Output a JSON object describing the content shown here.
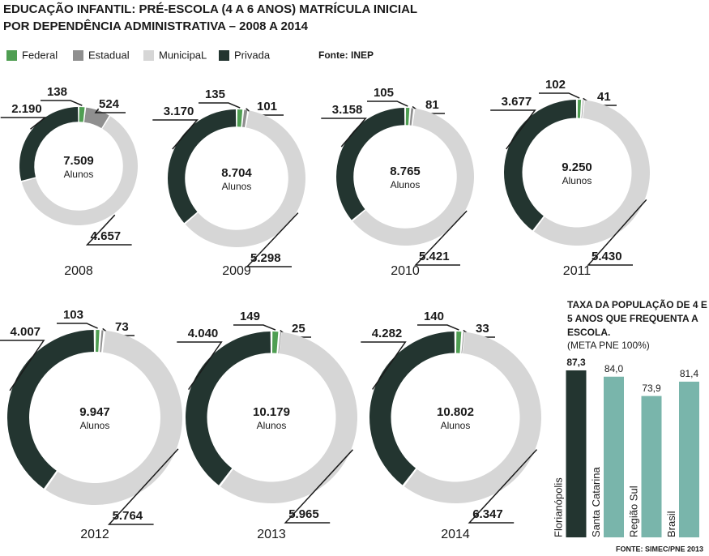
{
  "title": [
    "EDUCAÇÃO INFANTIL: PRÉ-ESCOLA (4 A 6 ANOS) MATRÍCULA INICIAL",
    "POR DEPENDÊNCIA ADMINISTRATIVA – 2008 A 2014"
  ],
  "legend": [
    {
      "name": "Federal",
      "color": "#4f9e52"
    },
    {
      "name": "Estadual",
      "color": "#8f8f8f"
    },
    {
      "name": "MunicipaL",
      "color": "#d6d6d6"
    },
    {
      "name": "Privada",
      "color": "#233530"
    }
  ],
  "source": "Fonte: INEP",
  "chart_data": [
    {
      "type": "donut",
      "label": "2008",
      "total": 7509,
      "total_label": "7.509",
      "unit": "Alunos",
      "values": [
        138,
        524,
        4657,
        2190
      ],
      "value_labels": [
        "138",
        "524",
        "4.657",
        "2.190"
      ]
    },
    {
      "type": "donut",
      "label": "2009",
      "total": 8704,
      "total_label": "8.704",
      "unit": "Alunos",
      "values": [
        135,
        101,
        5298,
        3170
      ],
      "value_labels": [
        "135",
        "101",
        "5.298",
        "3.170"
      ]
    },
    {
      "type": "donut",
      "label": "2010",
      "total": 8765,
      "total_label": "8.765",
      "unit": "Alunos",
      "values": [
        105,
        81,
        5421,
        3158
      ],
      "value_labels": [
        "105",
        "81",
        "5.421",
        "3.158"
      ]
    },
    {
      "type": "donut",
      "label": "2011",
      "total": 9250,
      "total_label": "9.250",
      "unit": "Alunos",
      "values": [
        102,
        41,
        5430,
        3677
      ],
      "value_labels": [
        "102",
        "41",
        "5.430",
        "3.677"
      ]
    },
    {
      "type": "donut",
      "label": "2012",
      "total": 9947,
      "total_label": "9.947",
      "unit": "Alunos",
      "values": [
        103,
        73,
        5764,
        4007
      ],
      "value_labels": [
        "103",
        "73",
        "5.764",
        "4.007"
      ]
    },
    {
      "type": "donut",
      "label": "2013",
      "total": 10179,
      "total_label": "10.179",
      "unit": "Alunos",
      "values": [
        149,
        25,
        5965,
        4040
      ],
      "value_labels": [
        "149",
        "25",
        "5.965",
        "4.040"
      ]
    },
    {
      "type": "donut",
      "label": "2014",
      "total": 10802,
      "total_label": "10.802",
      "unit": "Alunos",
      "values": [
        140,
        33,
        6347,
        4282
      ],
      "value_labels": [
        "140",
        "33",
        "6.347",
        "4.282"
      ]
    },
    {
      "type": "bar",
      "title": [
        "TAXA DA POPULAÇÃO DE 4 E",
        "5 ANOS QUE FREQUENTA A",
        "ESCOLA."
      ],
      "subtitle": "(META PNE 100%)",
      "categories": [
        "Florianópolis",
        "Santa Catarina",
        "Região Sul",
        "Brasil"
      ],
      "values": [
        87.3,
        84.0,
        73.9,
        81.4
      ],
      "value_labels": [
        "87,3",
        "84,0",
        "73,9",
        "81,4"
      ],
      "colors": [
        "#233530",
        "#79b5ab",
        "#79b5ab",
        "#79b5ab"
      ],
      "source": "FONTE: SIMEC/PNE 2013"
    }
  ]
}
